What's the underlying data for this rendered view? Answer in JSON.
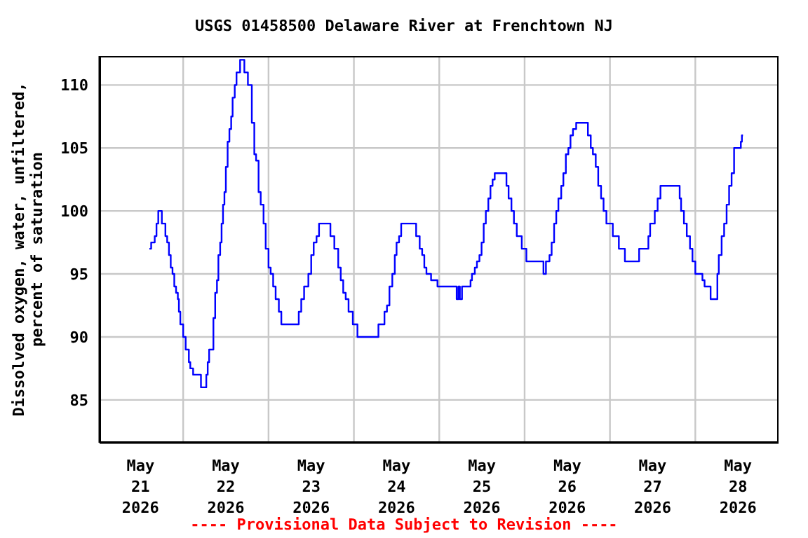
{
  "chart_data": {
    "type": "step",
    "title": "USGS 01458500 Delaware River at Frenchtown NJ",
    "ylabel": "Dissolved oxygen, water, unfiltered,\npercent of saturation",
    "annotations": [
      "---- Provisional Data Subject to Revision ----"
    ],
    "x": [
      "2026-05-21T02:30",
      "2026-05-21T03:00",
      "2026-05-21T04:00",
      "2026-05-21T04:30",
      "2026-05-21T05:00",
      "2026-05-21T06:00",
      "2026-05-21T07:00",
      "2026-05-21T07:30",
      "2026-05-21T08:00",
      "2026-05-21T08:30",
      "2026-05-21T09:00",
      "2026-05-21T09:30",
      "2026-05-21T10:00",
      "2026-05-21T10:30",
      "2026-05-21T10:48",
      "2026-05-21T11:12",
      "2026-05-21T12:00",
      "2026-05-21T12:42",
      "2026-05-21T13:36",
      "2026-05-21T14:00",
      "2026-05-21T14:48",
      "2026-05-21T17:00",
      "2026-05-21T18:30",
      "2026-05-21T18:54",
      "2026-05-21T19:18",
      "2026-05-21T20:30",
      "2026-05-21T21:00",
      "2026-05-21T21:30",
      "2026-05-21T21:54",
      "2026-05-21T22:24",
      "2026-05-21T22:48",
      "2026-05-21T23:12",
      "2026-05-21T23:36",
      "2026-05-22T00:00",
      "2026-05-22T00:30",
      "2026-05-22T01:00",
      "2026-05-22T01:30",
      "2026-05-22T01:54",
      "2026-05-22T02:30",
      "2026-05-22T03:00",
      "2026-05-22T04:00",
      "2026-05-22T05:12",
      "2026-05-22T06:12",
      "2026-05-22T07:18",
      "2026-05-22T08:00",
      "2026-05-22T08:30",
      "2026-05-22T09:12",
      "2026-05-22T09:48",
      "2026-05-22T10:36",
      "2026-05-22T11:12",
      "2026-05-22T12:00",
      "2026-05-22T12:36",
      "2026-05-22T13:18",
      "2026-05-22T14:00",
      "2026-05-22T14:54",
      "2026-05-22T15:36",
      "2026-05-22T20:30",
      "2026-05-22T21:12",
      "2026-05-22T22:00",
      "2026-05-22T23:12",
      "2026-05-23T00:00",
      "2026-05-23T00:42",
      "2026-05-23T01:30",
      "2026-05-23T02:12",
      "2026-05-23T05:24",
      "2026-05-23T06:30",
      "2026-05-23T07:36",
      "2026-05-23T08:18",
      "2026-05-23T09:00",
      "2026-05-23T09:42",
      "2026-05-23T10:30",
      "2026-05-23T11:42",
      "2026-05-23T13:00",
      "2026-05-23T18:54",
      "2026-05-23T20:36",
      "2026-05-23T21:18",
      "2026-05-23T22:00",
      "2026-05-23T22:48",
      "2026-05-23T23:30",
      "2026-05-24T00:00",
      "2026-05-24T00:42",
      "2026-05-24T01:18",
      "2026-05-24T05:30",
      "2026-05-24T06:30",
      "2026-05-24T07:12",
      "2026-05-24T07:48",
      "2026-05-24T08:24",
      "2026-05-24T09:42",
      "2026-05-24T11:30",
      "2026-05-24T16:54",
      "2026-05-24T17:24",
      "2026-05-24T17:48",
      "2026-05-24T18:24",
      "2026-05-24T20:48",
      "2026-05-24T21:12",
      "2026-05-24T22:00",
      "2026-05-24T22:36",
      "2026-05-24T23:18",
      "2026-05-24T23:54",
      "2026-05-25T00:30",
      "2026-05-25T01:06",
      "2026-05-25T01:48",
      "2026-05-25T02:24",
      "2026-05-25T03:00",
      "2026-05-25T03:36",
      "2026-05-25T06:54",
      "2026-05-25T07:30",
      "2026-05-25T08:18",
      "2026-05-25T09:00",
      "2026-05-25T09:48",
      "2026-05-25T11:12",
      "2026-05-25T12:30",
      "2026-05-25T17:18",
      "2026-05-25T18:00",
      "2026-05-25T19:00",
      "2026-05-25T19:36",
      "2026-05-25T20:18",
      "2026-05-25T20:54",
      "2026-05-25T21:30",
      "2026-05-25T22:18",
      "2026-05-25T22:54",
      "2026-05-25T23:36",
      "2026-05-26T00:18",
      "2026-05-26T00:54",
      "2026-05-26T01:36",
      "2026-05-26T02:30",
      "2026-05-26T05:48",
      "2026-05-26T06:36",
      "2026-05-26T07:12",
      "2026-05-26T08:00",
      "2026-05-26T08:42",
      "2026-05-26T09:30",
      "2026-05-26T10:12",
      "2026-05-26T11:00",
      "2026-05-26T12:48",
      "2026-05-26T14:30",
      "2026-05-26T16:12",
      "2026-05-26T20:12",
      "2026-05-26T22:48",
      "2026-05-26T23:18",
      "2026-05-27T00:36",
      "2026-05-27T01:24",
      "2026-05-27T02:12",
      "2026-05-27T07:36",
      "2026-05-27T08:00",
      "2026-05-27T08:48",
      "2026-05-27T09:36",
      "2026-05-27T10:30",
      "2026-05-27T11:12",
      "2026-05-27T12:00",
      "2026-05-27T14:00",
      "2026-05-27T14:36",
      "2026-05-27T16:18",
      "2026-05-27T18:12",
      "2026-05-27T18:36",
      "2026-05-27T19:24",
      "2026-05-27T20:06",
      "2026-05-27T20:48",
      "2026-05-27T21:30",
      "2026-05-27T22:12",
      "2026-05-27T22:54",
      "2026-05-28T00:48",
      "2026-05-28T01:06",
      "2026-05-28T01:24"
    ],
    "series": [
      {
        "color": "#0000ff",
        "values": [
          97,
          97.5,
          98,
          99,
          100,
          99,
          98,
          97.5,
          96.5,
          95.5,
          95,
          94,
          93.5,
          93,
          92,
          91,
          90,
          89,
          88,
          87.5,
          87,
          86,
          87,
          88,
          89,
          91.5,
          93.5,
          94.5,
          96.5,
          97.5,
          99,
          100.5,
          101.5,
          103.5,
          105.5,
          106.5,
          107.5,
          109,
          110,
          111,
          112,
          111,
          110,
          107,
          104.5,
          104,
          101.5,
          100.5,
          99,
          97,
          95.5,
          95,
          94,
          93,
          92,
          91,
          92,
          93,
          94,
          95,
          96.5,
          97.5,
          98,
          99,
          98,
          97,
          95.5,
          94.5,
          93.5,
          93,
          92,
          91,
          90,
          91,
          92,
          92.5,
          94,
          95,
          96.5,
          97.5,
          98,
          99,
          98,
          97,
          96.5,
          95.5,
          95,
          94.5,
          94,
          93,
          94,
          93,
          94,
          94.5,
          95,
          95.5,
          96,
          96.5,
          97.5,
          99,
          100,
          101,
          102,
          102.5,
          103,
          102,
          101,
          100,
          99,
          98,
          97,
          96,
          95,
          96,
          96.5,
          97.5,
          99,
          100,
          101,
          102,
          103,
          104.5,
          105,
          106,
          106.5,
          107,
          106,
          105,
          104.5,
          103.5,
          102,
          101,
          100,
          99,
          98,
          97,
          96,
          97,
          98,
          99,
          100,
          101,
          102,
          101,
          100,
          99,
          98,
          97,
          96,
          95,
          94.5,
          94,
          93,
          95,
          96.5,
          98,
          99,
          100.5,
          102,
          103,
          105,
          105.5,
          106,
          106
        ]
      }
    ],
    "xlim": [
      "2026-05-20T12:30",
      "2026-05-28T11:24"
    ],
    "ylim": [
      81.6,
      112.3
    ],
    "yticks": [
      85,
      90,
      95,
      100,
      105,
      110
    ],
    "xticks": [
      {
        "value": "2026-05-21",
        "label": "May 21 2026"
      },
      {
        "value": "2026-05-21T12:00",
        "label": null
      },
      {
        "value": "2026-05-22",
        "label": "May 22 2026"
      },
      {
        "value": "2026-05-22T12:00",
        "label": null
      },
      {
        "value": "2026-05-23",
        "label": "May 23 2026"
      },
      {
        "value": "2026-05-23T12:00",
        "label": null
      },
      {
        "value": "2026-05-24",
        "label": "May 24 2026"
      },
      {
        "value": "2026-05-24T12:00",
        "label": null
      },
      {
        "value": "2026-05-25",
        "label": "May 25 2026"
      },
      {
        "value": "2026-05-25T12:00",
        "label": null
      },
      {
        "value": "2026-05-26",
        "label": "May 26 2026"
      },
      {
        "value": "2026-05-26T12:00",
        "label": null
      },
      {
        "value": "2026-05-27",
        "label": "May 27 2026"
      },
      {
        "value": "2026-05-27T12:00",
        "label": null
      },
      {
        "value": "2026-05-28",
        "label": "May 28 2026"
      }
    ],
    "grid": true,
    "marker": "none",
    "line_style": "solid"
  }
}
